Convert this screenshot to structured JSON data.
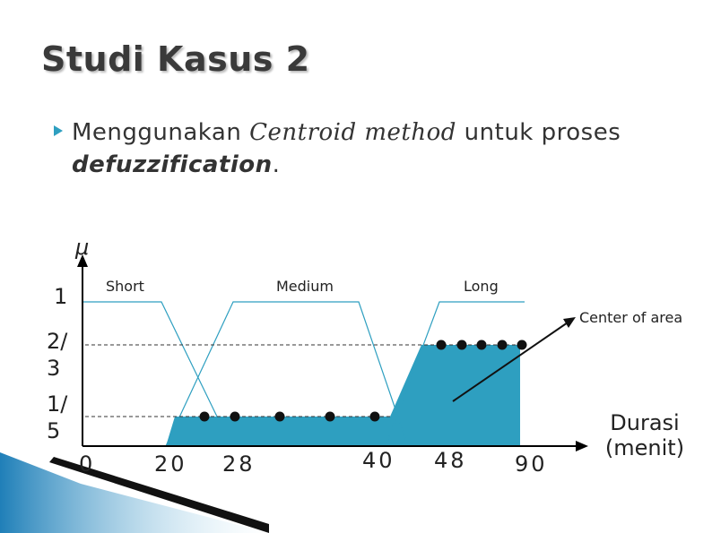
{
  "header": {
    "title": "Studi Kasus 2"
  },
  "bullet": {
    "lead": "Menggunakan ",
    "method": "Centroid method",
    "middle": " untuk proses ",
    "term": "defuzzification",
    "end": "."
  },
  "diagram": {
    "y_axis_label": "μ",
    "y_labels": [
      "1",
      "2/3",
      "1/5"
    ],
    "x_labels": [
      "0",
      "20",
      "28",
      "40",
      "48",
      "90"
    ],
    "sets": [
      "Short",
      "Medium",
      "Long"
    ],
    "annotation": "Center of area",
    "x_axis_label": "Durasi (menit)"
  }
}
